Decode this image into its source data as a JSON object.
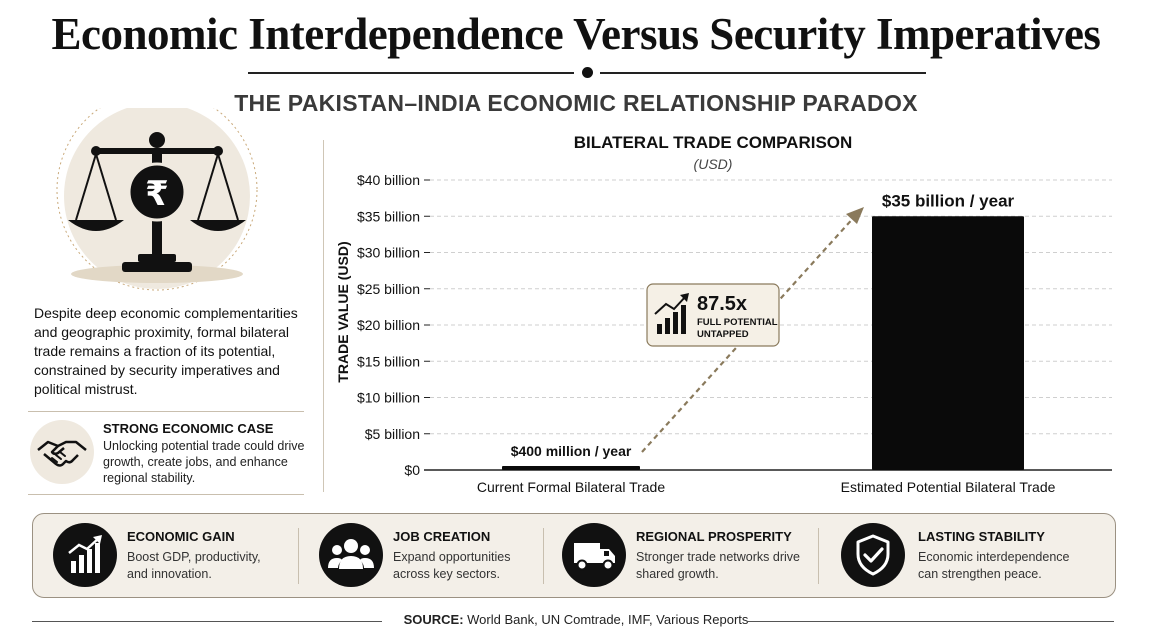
{
  "header": {
    "title": "Economic Interdependence Versus Security Imperatives",
    "subtitle": "THE PAKISTAN–INDIA ECONOMIC RELATIONSHIP PARADOX"
  },
  "left": {
    "emblem_symbol": "₹",
    "intro": "Despite deep economic complementarities and geographic proximity, formal bilateral trade remains a fraction of its potential, constrained by security imperatives and political mistrust.",
    "case_title": "STRONG ECONOMIC CASE",
    "case_text": "Unlocking potential trade could drive growth, create jobs, and enhance regional stability."
  },
  "callout": {
    "value": "87.5x",
    "label_line1": "FULL POTENTIAL",
    "label_line2": "UNTAPPED"
  },
  "chart_data": {
    "type": "bar",
    "title": "BILATERAL TRADE COMPARISON",
    "subtitle": "(USD)",
    "ylabel": "TRADE VALUE (USD)",
    "xlabel": "",
    "categories": [
      "Current Formal Bilateral Trade",
      "Estimated Potential Bilateral Trade"
    ],
    "values": [
      0.4,
      35
    ],
    "data_labels": [
      "$400 million / year",
      "$35 billion / year"
    ],
    "ylim": [
      0,
      40
    ],
    "yticks": [
      0,
      5,
      10,
      15,
      20,
      25,
      30,
      35,
      40
    ],
    "ytick_labels": [
      "$0",
      "$5 billion",
      "$10 billion",
      "$15 billion",
      "$20 billion",
      "$25 billion",
      "$30 billion",
      "$35 billion",
      "$40 billion"
    ],
    "grid": true,
    "bar_color": "#0a0a0a"
  },
  "features": [
    {
      "icon": "growth-chart-icon",
      "title": "ECONOMIC GAIN",
      "text": "Boost GDP, productivity, and innovation."
    },
    {
      "icon": "people-icon",
      "title": "JOB CREATION",
      "text": "Expand opportunities across key sectors."
    },
    {
      "icon": "truck-icon",
      "title": "REGIONAL PROSPERITY",
      "text": "Stronger trade networks drive shared growth."
    },
    {
      "icon": "shield-check-icon",
      "title": "LASTING STABILITY",
      "text": "Economic interdependence can strengthen peace."
    }
  ],
  "footer": {
    "source_label": "SOURCE:",
    "source_text": " World Bank, UN Comtrade, IMF, Various Reports"
  },
  "colors": {
    "accent_beige": "#efe9df",
    "arrow": "#8a7a5c",
    "callout_bg": "#f5f0e6"
  }
}
